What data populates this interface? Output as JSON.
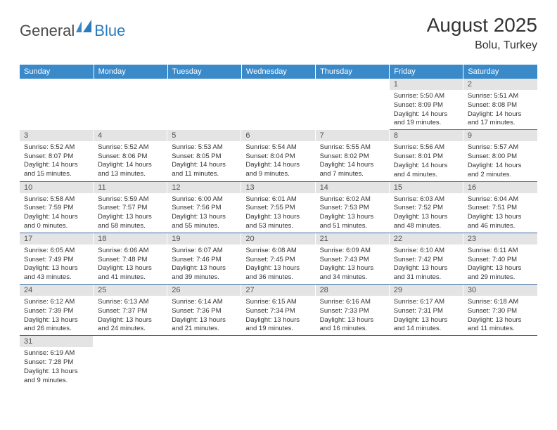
{
  "logo": {
    "general": "General",
    "blue": "Blue"
  },
  "title": {
    "month": "August 2025",
    "location": "Bolu, Turkey"
  },
  "colors": {
    "headerBg": "#3a89c9",
    "headerText": "#ffffff",
    "dayNumBg": "#e4e4e4",
    "dayNumText": "#555555",
    "bodyText": "#333333",
    "rowBorder": "#3a6ea5",
    "logoGray": "#4a4a4a",
    "logoBlue": "#2b7bbd"
  },
  "weekdays": [
    "Sunday",
    "Monday",
    "Tuesday",
    "Wednesday",
    "Thursday",
    "Friday",
    "Saturday"
  ],
  "weeks": [
    [
      null,
      null,
      null,
      null,
      null,
      {
        "n": "1",
        "sr": "Sunrise: 5:50 AM",
        "ss": "Sunset: 8:09 PM",
        "dl": "Daylight: 14 hours and 19 minutes."
      },
      {
        "n": "2",
        "sr": "Sunrise: 5:51 AM",
        "ss": "Sunset: 8:08 PM",
        "dl": "Daylight: 14 hours and 17 minutes."
      }
    ],
    [
      {
        "n": "3",
        "sr": "Sunrise: 5:52 AM",
        "ss": "Sunset: 8:07 PM",
        "dl": "Daylight: 14 hours and 15 minutes."
      },
      {
        "n": "4",
        "sr": "Sunrise: 5:52 AM",
        "ss": "Sunset: 8:06 PM",
        "dl": "Daylight: 14 hours and 13 minutes."
      },
      {
        "n": "5",
        "sr": "Sunrise: 5:53 AM",
        "ss": "Sunset: 8:05 PM",
        "dl": "Daylight: 14 hours and 11 minutes."
      },
      {
        "n": "6",
        "sr": "Sunrise: 5:54 AM",
        "ss": "Sunset: 8:04 PM",
        "dl": "Daylight: 14 hours and 9 minutes."
      },
      {
        "n": "7",
        "sr": "Sunrise: 5:55 AM",
        "ss": "Sunset: 8:02 PM",
        "dl": "Daylight: 14 hours and 7 minutes."
      },
      {
        "n": "8",
        "sr": "Sunrise: 5:56 AM",
        "ss": "Sunset: 8:01 PM",
        "dl": "Daylight: 14 hours and 4 minutes."
      },
      {
        "n": "9",
        "sr": "Sunrise: 5:57 AM",
        "ss": "Sunset: 8:00 PM",
        "dl": "Daylight: 14 hours and 2 minutes."
      }
    ],
    [
      {
        "n": "10",
        "sr": "Sunrise: 5:58 AM",
        "ss": "Sunset: 7:59 PM",
        "dl": "Daylight: 14 hours and 0 minutes."
      },
      {
        "n": "11",
        "sr": "Sunrise: 5:59 AM",
        "ss": "Sunset: 7:57 PM",
        "dl": "Daylight: 13 hours and 58 minutes."
      },
      {
        "n": "12",
        "sr": "Sunrise: 6:00 AM",
        "ss": "Sunset: 7:56 PM",
        "dl": "Daylight: 13 hours and 55 minutes."
      },
      {
        "n": "13",
        "sr": "Sunrise: 6:01 AM",
        "ss": "Sunset: 7:55 PM",
        "dl": "Daylight: 13 hours and 53 minutes."
      },
      {
        "n": "14",
        "sr": "Sunrise: 6:02 AM",
        "ss": "Sunset: 7:53 PM",
        "dl": "Daylight: 13 hours and 51 minutes."
      },
      {
        "n": "15",
        "sr": "Sunrise: 6:03 AM",
        "ss": "Sunset: 7:52 PM",
        "dl": "Daylight: 13 hours and 48 minutes."
      },
      {
        "n": "16",
        "sr": "Sunrise: 6:04 AM",
        "ss": "Sunset: 7:51 PM",
        "dl": "Daylight: 13 hours and 46 minutes."
      }
    ],
    [
      {
        "n": "17",
        "sr": "Sunrise: 6:05 AM",
        "ss": "Sunset: 7:49 PM",
        "dl": "Daylight: 13 hours and 43 minutes."
      },
      {
        "n": "18",
        "sr": "Sunrise: 6:06 AM",
        "ss": "Sunset: 7:48 PM",
        "dl": "Daylight: 13 hours and 41 minutes."
      },
      {
        "n": "19",
        "sr": "Sunrise: 6:07 AM",
        "ss": "Sunset: 7:46 PM",
        "dl": "Daylight: 13 hours and 39 minutes."
      },
      {
        "n": "20",
        "sr": "Sunrise: 6:08 AM",
        "ss": "Sunset: 7:45 PM",
        "dl": "Daylight: 13 hours and 36 minutes."
      },
      {
        "n": "21",
        "sr": "Sunrise: 6:09 AM",
        "ss": "Sunset: 7:43 PM",
        "dl": "Daylight: 13 hours and 34 minutes."
      },
      {
        "n": "22",
        "sr": "Sunrise: 6:10 AM",
        "ss": "Sunset: 7:42 PM",
        "dl": "Daylight: 13 hours and 31 minutes."
      },
      {
        "n": "23",
        "sr": "Sunrise: 6:11 AM",
        "ss": "Sunset: 7:40 PM",
        "dl": "Daylight: 13 hours and 29 minutes."
      }
    ],
    [
      {
        "n": "24",
        "sr": "Sunrise: 6:12 AM",
        "ss": "Sunset: 7:39 PM",
        "dl": "Daylight: 13 hours and 26 minutes."
      },
      {
        "n": "25",
        "sr": "Sunrise: 6:13 AM",
        "ss": "Sunset: 7:37 PM",
        "dl": "Daylight: 13 hours and 24 minutes."
      },
      {
        "n": "26",
        "sr": "Sunrise: 6:14 AM",
        "ss": "Sunset: 7:36 PM",
        "dl": "Daylight: 13 hours and 21 minutes."
      },
      {
        "n": "27",
        "sr": "Sunrise: 6:15 AM",
        "ss": "Sunset: 7:34 PM",
        "dl": "Daylight: 13 hours and 19 minutes."
      },
      {
        "n": "28",
        "sr": "Sunrise: 6:16 AM",
        "ss": "Sunset: 7:33 PM",
        "dl": "Daylight: 13 hours and 16 minutes."
      },
      {
        "n": "29",
        "sr": "Sunrise: 6:17 AM",
        "ss": "Sunset: 7:31 PM",
        "dl": "Daylight: 13 hours and 14 minutes."
      },
      {
        "n": "30",
        "sr": "Sunrise: 6:18 AM",
        "ss": "Sunset: 7:30 PM",
        "dl": "Daylight: 13 hours and 11 minutes."
      }
    ],
    [
      {
        "n": "31",
        "sr": "Sunrise: 6:19 AM",
        "ss": "Sunset: 7:28 PM",
        "dl": "Daylight: 13 hours and 9 minutes."
      },
      null,
      null,
      null,
      null,
      null,
      null
    ]
  ]
}
